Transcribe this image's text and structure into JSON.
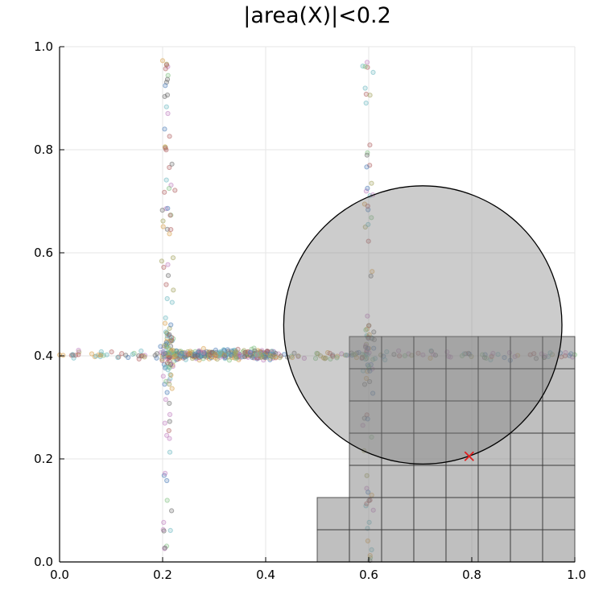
{
  "chart_data": {
    "type": "scatter",
    "title": "|area(X)|<0.2",
    "xlabel": "",
    "ylabel": "",
    "xlim": [
      0,
      1
    ],
    "ylim": [
      0,
      1
    ],
    "grid": true,
    "legend": "none",
    "x_ticks": [
      "0.0",
      "0.2",
      "0.4",
      "0.6",
      "0.8",
      "1.0"
    ],
    "y_ticks": [
      "0.0",
      "0.2",
      "0.4",
      "0.6",
      "0.8",
      "1.0"
    ],
    "x_tick_values": [
      0,
      0.2,
      0.4,
      0.6,
      0.8,
      1.0
    ],
    "y_tick_values": [
      0,
      0.2,
      0.4,
      0.6,
      0.8,
      1.0
    ],
    "circle": {
      "cx": 0.705,
      "cy": 0.46,
      "r": 0.27,
      "fill": "#808080",
      "fill_opacity": 0.4,
      "stroke": "#000000"
    },
    "marker": {
      "x": 0.795,
      "y": 0.205,
      "color": "#e02020",
      "symbol": "x"
    },
    "box_grid": {
      "fill": "#808080",
      "fill_opacity": 0.5,
      "stroke": "#333333",
      "cells": [
        [
          0.5,
          0.0,
          0.5625,
          0.0625
        ],
        [
          0.5625,
          0.0,
          0.625,
          0.0625
        ],
        [
          0.625,
          0.0,
          0.6875,
          0.0625
        ],
        [
          0.6875,
          0.0,
          0.75,
          0.0625
        ],
        [
          0.75,
          0.0,
          0.8125,
          0.0625
        ],
        [
          0.8125,
          0.0,
          0.875,
          0.0625
        ],
        [
          0.875,
          0.0,
          0.9375,
          0.0625
        ],
        [
          0.9375,
          0.0,
          1.0,
          0.0625
        ],
        [
          0.5,
          0.0625,
          0.5625,
          0.125
        ],
        [
          0.5625,
          0.0625,
          0.625,
          0.125
        ],
        [
          0.625,
          0.0625,
          0.6875,
          0.125
        ],
        [
          0.6875,
          0.0625,
          0.75,
          0.125
        ],
        [
          0.75,
          0.0625,
          0.8125,
          0.125
        ],
        [
          0.8125,
          0.0625,
          0.875,
          0.125
        ],
        [
          0.875,
          0.0625,
          0.9375,
          0.125
        ],
        [
          0.9375,
          0.0625,
          1.0,
          0.125
        ],
        [
          0.5625,
          0.125,
          0.625,
          0.1875
        ],
        [
          0.625,
          0.125,
          0.6875,
          0.1875
        ],
        [
          0.6875,
          0.125,
          0.75,
          0.1875
        ],
        [
          0.75,
          0.125,
          0.8125,
          0.1875
        ],
        [
          0.8125,
          0.125,
          0.875,
          0.1875
        ],
        [
          0.875,
          0.125,
          0.9375,
          0.1875
        ],
        [
          0.9375,
          0.125,
          1.0,
          0.1875
        ],
        [
          0.5625,
          0.1875,
          0.625,
          0.25
        ],
        [
          0.625,
          0.1875,
          0.6875,
          0.25
        ],
        [
          0.6875,
          0.1875,
          0.75,
          0.25
        ],
        [
          0.75,
          0.1875,
          0.8125,
          0.25
        ],
        [
          0.8125,
          0.1875,
          0.875,
          0.25
        ],
        [
          0.875,
          0.1875,
          0.9375,
          0.25
        ],
        [
          0.9375,
          0.1875,
          1.0,
          0.25
        ],
        [
          0.5625,
          0.25,
          0.625,
          0.3125
        ],
        [
          0.625,
          0.25,
          0.6875,
          0.3125
        ],
        [
          0.6875,
          0.25,
          0.75,
          0.3125
        ],
        [
          0.75,
          0.25,
          0.8125,
          0.3125
        ],
        [
          0.8125,
          0.25,
          0.875,
          0.3125
        ],
        [
          0.875,
          0.25,
          0.9375,
          0.3125
        ],
        [
          0.9375,
          0.25,
          1.0,
          0.3125
        ],
        [
          0.5625,
          0.3125,
          0.625,
          0.375
        ],
        [
          0.625,
          0.3125,
          0.6875,
          0.375
        ],
        [
          0.6875,
          0.3125,
          0.75,
          0.375
        ],
        [
          0.75,
          0.3125,
          0.8125,
          0.375
        ],
        [
          0.8125,
          0.3125,
          0.875,
          0.375
        ],
        [
          0.875,
          0.3125,
          0.9375,
          0.375
        ],
        [
          0.9375,
          0.3125,
          1.0,
          0.375
        ],
        [
          0.5625,
          0.375,
          0.625,
          0.4375
        ],
        [
          0.625,
          0.375,
          0.6875,
          0.4375
        ],
        [
          0.6875,
          0.375,
          0.75,
          0.4375
        ],
        [
          0.75,
          0.375,
          0.8125,
          0.4375
        ],
        [
          0.8125,
          0.375,
          0.875,
          0.4375
        ],
        [
          0.875,
          0.375,
          0.9375,
          0.4375
        ],
        [
          0.9375,
          0.375,
          1.0,
          0.4375
        ]
      ]
    },
    "point_colors": [
      "#4a7bb7",
      "#7fbf7f",
      "#c07fc0",
      "#d9a04a",
      "#6a6a6a",
      "#6ab7c0",
      "#b06060",
      "#a0a05a"
    ],
    "point_clusters": [
      {
        "description_free": true,
        "axis": "vertical",
        "x_center": 0.21,
        "x_spread": 0.012,
        "y_from": 0.0,
        "y_to": 1.0,
        "count": 130
      },
      {
        "axis": "vertical",
        "x_center": 0.6,
        "x_spread": 0.01,
        "y_from": 0.0,
        "y_to": 1.0,
        "count": 90
      },
      {
        "axis": "horizontal",
        "y_center": 0.4,
        "y_spread": 0.008,
        "x_from": 0.0,
        "x_to": 1.0,
        "count": 180
      },
      {
        "axis": "horizontal",
        "y_center": 0.403,
        "y_spread": 0.009,
        "x_from": 0.2,
        "x_to": 0.42,
        "count": 320
      }
    ]
  }
}
